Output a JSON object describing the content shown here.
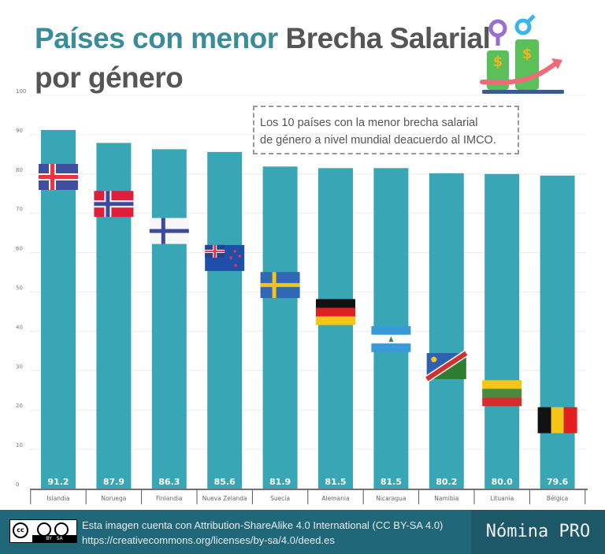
{
  "title": {
    "part1": "Países con menor",
    "part2": "Brecha Salarial",
    "part3": "por género"
  },
  "note": {
    "line1": "Los 10 países con la menor brecha salarial",
    "line2": "de género a nivel mundial deacuerdo al IMCO."
  },
  "chart_data": {
    "type": "bar",
    "categories": [
      "Islandia",
      "Noruega",
      "Finlandia",
      "Nueva Zelanda",
      "Suecia",
      "Alemania",
      "Nicaragua",
      "Namibia",
      "Lituania",
      "Bélgica"
    ],
    "values": [
      91.2,
      87.9,
      86.3,
      85.6,
      81.9,
      81.5,
      81.5,
      80.2,
      80.0,
      79.6
    ],
    "data_labels": [
      "91.2",
      "87.9",
      "86.3",
      "85.6",
      "81.9",
      "81.5",
      "81.5",
      "80.2",
      "80.0",
      "79.6"
    ],
    "ylim": [
      0,
      100
    ],
    "yticks": [
      "0",
      "10",
      "20",
      "30",
      "40",
      "50",
      "60",
      "70",
      "80",
      "90",
      "100"
    ],
    "grid": true,
    "bar_color": "#38a6b5"
  },
  "footer": {
    "license_line1": "Esta imagen cuenta con Attribution-ShareAlike 4.0 International (CC BY-SA 4.0)",
    "license_line2": "https://creativecommons.org/licenses/by-sa/4.0/deed.es",
    "brand": "Nómina PRO",
    "cc_badge": {
      "cc": "cc",
      "by": "BY",
      "sa": "SA"
    }
  },
  "colors": {
    "accent": "#3a8c9a",
    "footer": "#21677a"
  }
}
